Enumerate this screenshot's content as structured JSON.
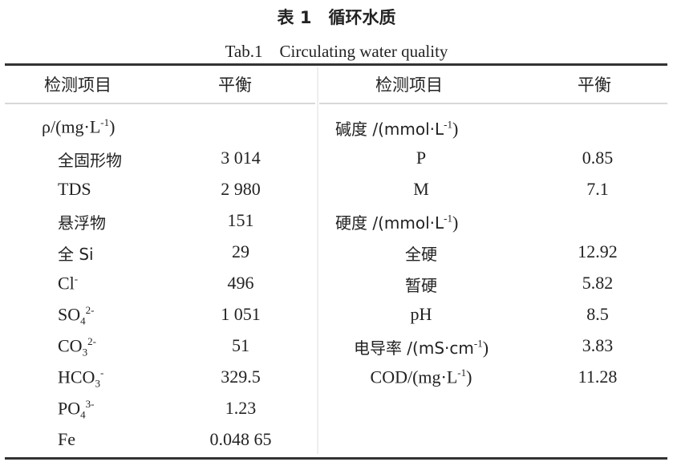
{
  "title": "表 1　循环水质",
  "subtitle": "Tab.1　Circulating water quality",
  "headers": {
    "item": "检测项目",
    "value": "平衡"
  },
  "left": {
    "group": {
      "base": "ρ/(mg·L",
      "sup": "-1",
      "tail": ")"
    },
    "rows": [
      {
        "base": "全固形物",
        "sub": "",
        "sup": "",
        "value": "3 014"
      },
      {
        "base": "TDS",
        "sub": "",
        "sup": "",
        "value": "2 980"
      },
      {
        "base": "悬浮物",
        "sub": "",
        "sup": "",
        "value": "151"
      },
      {
        "base": "全 Si",
        "sub": "",
        "sup": "",
        "value": "29"
      },
      {
        "base": "Cl",
        "sub": "",
        "sup": "-",
        "value": "496"
      },
      {
        "base": "SO",
        "sub": "4",
        "sup": "2-",
        "value": "1 051"
      },
      {
        "base": "CO",
        "sub": "3",
        "sup": "2-",
        "value": "51"
      },
      {
        "base": "HCO",
        "sub": "3",
        "sup": "-",
        "value": "329.5"
      },
      {
        "base": "PO",
        "sub": "4",
        "sup": "3-",
        "value": "1.23"
      },
      {
        "base": "Fe",
        "sub": "",
        "sup": "",
        "value": "0.048 65"
      }
    ]
  },
  "right": {
    "alkalinity_group": {
      "base": "碱度 /(mmol·L",
      "sup": "-1",
      "tail": ")"
    },
    "alkalinity_rows": [
      {
        "label": "P",
        "value": "0.85"
      },
      {
        "label": "M",
        "value": "7.1"
      }
    ],
    "hardness_group": {
      "base": "硬度 /(mmol·L",
      "sup": "-1",
      "tail": ")"
    },
    "hardness_rows": [
      {
        "label": "全硬",
        "value": "12.92"
      },
      {
        "label": "暂硬",
        "value": "5.82"
      },
      {
        "label": "pH",
        "value": "8.5"
      }
    ],
    "conductivity": {
      "base": "电导率 /(mS·cm",
      "sup": "-1",
      "tail": ")",
      "value": "3.83"
    },
    "cod": {
      "base": "COD/(mg·L",
      "sup": "-1",
      "tail": ")",
      "value": "11.28"
    }
  }
}
